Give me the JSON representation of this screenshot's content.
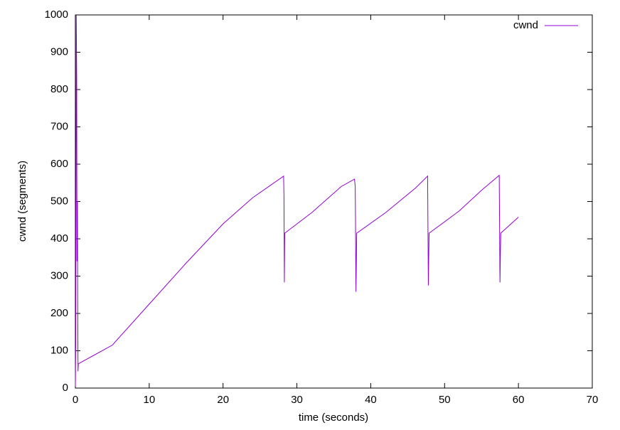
{
  "chart_data": {
    "type": "line",
    "x_label": "time (seconds)",
    "y_label": "cwnd (segments)",
    "x": [
      0,
      0.05,
      0.12,
      0.18,
      0.22,
      0.28,
      0.32,
      0.36,
      0.4,
      5,
      10,
      15,
      20,
      24,
      28.2,
      28.25,
      28.3,
      28.35,
      32,
      36,
      37.8,
      37.9,
      38,
      38.1,
      42,
      46,
      47.7,
      47.8,
      47.9,
      52,
      55,
      57.4,
      57.5,
      57.6,
      60
    ],
    "series": [
      {
        "name": "cwnd",
        "color": "#9400d3",
        "values": [
          5,
          120,
          1000,
          830,
          340,
          500,
          220,
          45,
          65,
          115,
          225,
          335,
          440,
          510,
          568,
          515,
          283,
          415,
          470,
          540,
          560,
          540,
          258,
          415,
          470,
          535,
          568,
          275,
          415,
          475,
          530,
          570,
          283,
          415,
          458
        ]
      }
    ],
    "xlim": [
      0,
      70
    ],
    "xticks": [
      0,
      10,
      20,
      30,
      40,
      50,
      60,
      70
    ],
    "ylim": [
      0,
      1000
    ],
    "yticks": [
      0,
      100,
      200,
      300,
      400,
      500,
      600,
      700,
      800,
      900,
      1000
    ],
    "grid": false,
    "legend": "top-right"
  }
}
